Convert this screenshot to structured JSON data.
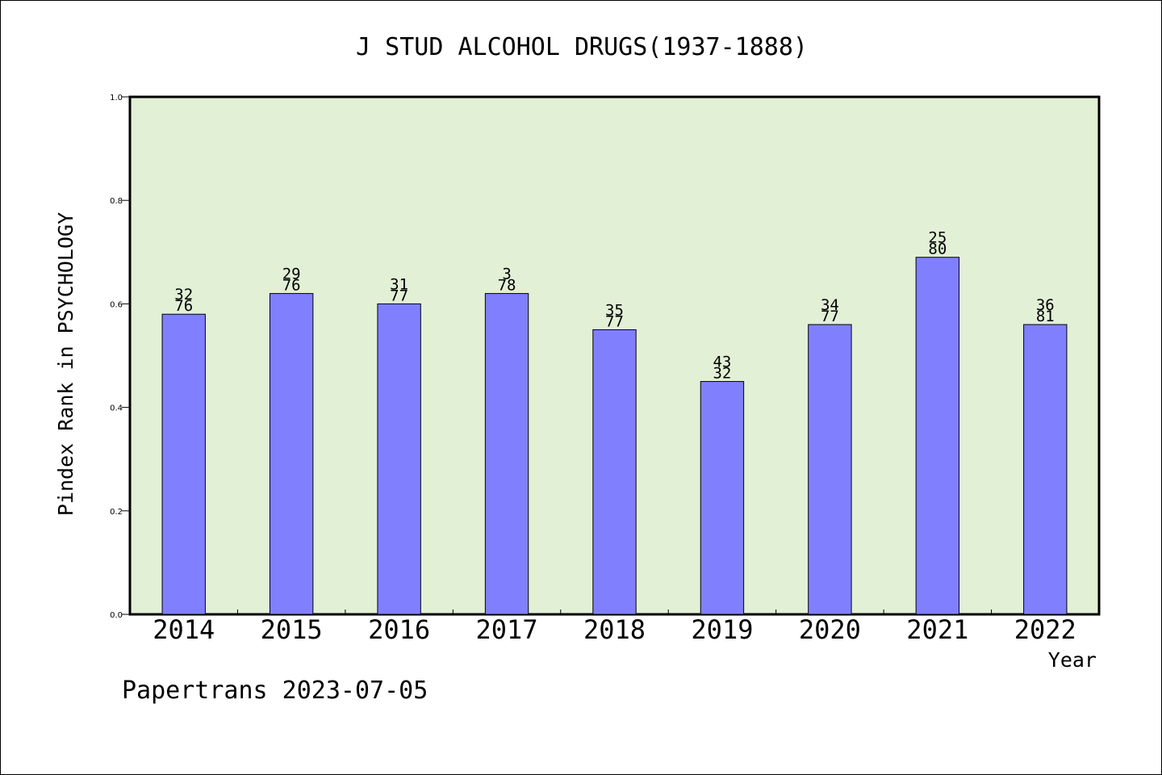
{
  "chart_data": {
    "type": "bar",
    "title": "J STUD ALCOHOL DRUGS(1937-1888)",
    "xlabel": "Year",
    "ylabel": "Pindex Rank in PSYCHOLOGY",
    "ylim": [
      0,
      1.0
    ],
    "yticks": [
      "0.0",
      "0.2",
      "0.4",
      "0.6",
      "0.8",
      "1.0"
    ],
    "grid": false,
    "categories": [
      "2014",
      "2015",
      "2016",
      "2017",
      "2018",
      "2019",
      "2020",
      "2021",
      "2022"
    ],
    "values": [
      0.58,
      0.62,
      0.6,
      0.62,
      0.55,
      0.45,
      0.56,
      0.69,
      0.56
    ],
    "labels_top": [
      "32",
      "29",
      "31",
      "3",
      "35",
      "43",
      "34",
      "25",
      "36"
    ],
    "labels_bottom": [
      "76",
      "76",
      "77",
      "78",
      "77",
      "32",
      "77",
      "80",
      "81"
    ],
    "colors": {
      "plot_bg": "#e2f0d6",
      "bar_fill": "#8080ff",
      "bar_stroke": "#000000"
    }
  },
  "footer": {
    "credit": "Papertrans 2023-07-05"
  }
}
